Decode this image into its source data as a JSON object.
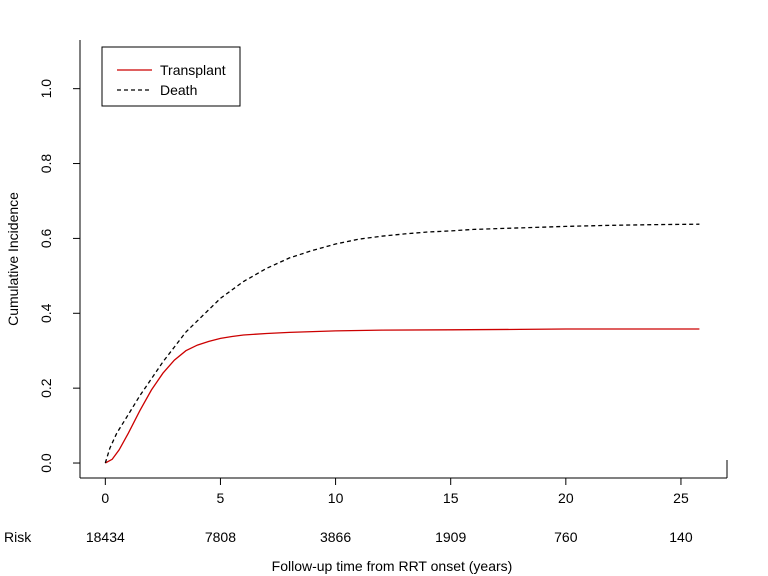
{
  "chart_data": {
    "type": "line",
    "title": "",
    "xlabel": "Follow-up time from RRT onset (years)",
    "ylabel": "Cumulative Incidence",
    "xlim": [
      -1.1,
      27.0
    ],
    "ylim": [
      -0.04,
      1.13
    ],
    "x_ticks": [
      0,
      5,
      10,
      15,
      20,
      25
    ],
    "y_ticks": [
      0.0,
      0.2,
      0.4,
      0.6,
      0.8,
      1.0
    ],
    "y_tick_labels": [
      "0.0",
      "0.2",
      "0.4",
      "0.6",
      "0.8",
      "1.0"
    ],
    "grid": false,
    "legend_position": "top-left",
    "risk_table": {
      "label": "Risk",
      "times": [
        0,
        5,
        10,
        15,
        20,
        25
      ],
      "values": [
        "18434",
        "7808",
        "3866",
        "1909",
        "760",
        "140"
      ]
    },
    "series": [
      {
        "name": "Transplant",
        "color": "#cc0000",
        "dash": "solid",
        "x": [
          0,
          0.3,
          0.6,
          1.0,
          1.5,
          2.0,
          2.5,
          3.0,
          3.5,
          4.0,
          4.5,
          5.0,
          5.5,
          6.0,
          7.0,
          8.0,
          9.0,
          10.0,
          12.0,
          15.0,
          18.0,
          20.0,
          22.0,
          25.0,
          25.8
        ],
        "y": [
          0.0,
          0.01,
          0.035,
          0.08,
          0.14,
          0.195,
          0.24,
          0.275,
          0.3,
          0.315,
          0.325,
          0.333,
          0.338,
          0.342,
          0.346,
          0.349,
          0.351,
          0.353,
          0.355,
          0.356,
          0.357,
          0.358,
          0.358,
          0.358,
          0.358
        ]
      },
      {
        "name": "Death",
        "color": "#000000",
        "dash": "dashed",
        "x": [
          0,
          0.2,
          0.5,
          1.0,
          1.5,
          2.0,
          2.5,
          3.0,
          3.5,
          4.0,
          5.0,
          6.0,
          7.0,
          8.0,
          9.0,
          10.0,
          11.0,
          12.0,
          13.0,
          14.0,
          15.0,
          16.0,
          18.0,
          20.0,
          22.0,
          24.0,
          25.8
        ],
        "y": [
          0.0,
          0.04,
          0.08,
          0.13,
          0.18,
          0.225,
          0.27,
          0.31,
          0.35,
          0.38,
          0.44,
          0.485,
          0.52,
          0.548,
          0.568,
          0.585,
          0.598,
          0.606,
          0.612,
          0.617,
          0.62,
          0.624,
          0.628,
          0.632,
          0.635,
          0.637,
          0.638
        ]
      }
    ]
  }
}
